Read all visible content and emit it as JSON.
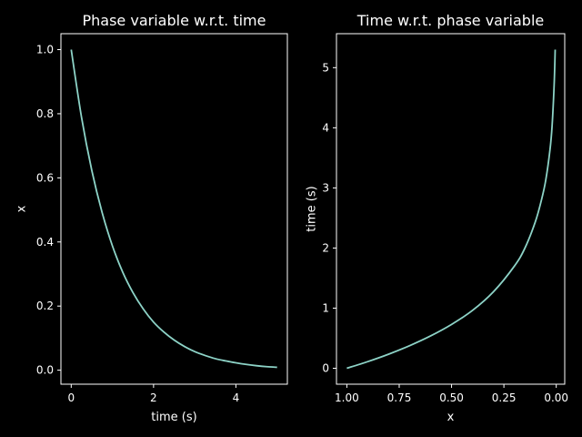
{
  "figure": {
    "background": "#000000",
    "foreground": "#ffffff",
    "line_color": "#8dd3c7"
  },
  "chart_data": [
    {
      "type": "line",
      "title": "Phase variable w.r.t. time",
      "xlabel": "time (s)",
      "ylabel": "x",
      "xlim": [
        -0.25,
        5.25
      ],
      "ylim": [
        -0.0437,
        1.0497
      ],
      "xticks": [
        0,
        2,
        4
      ],
      "xtick_labels": [
        "0",
        "2",
        "4"
      ],
      "yticks": [
        0.0,
        0.2,
        0.4,
        0.6,
        0.8,
        1.0
      ],
      "ytick_labels": [
        "0.0",
        "0.2",
        "0.4",
        "0.6",
        "0.8",
        "1.0"
      ],
      "grid": false,
      "x": [
        0.0,
        0.25,
        0.5,
        0.75,
        1.0,
        1.25,
        1.5,
        1.75,
        2.0,
        2.25,
        2.5,
        2.75,
        3.0,
        3.25,
        3.5,
        3.75,
        4.0,
        4.25,
        4.5,
        4.75,
        5.0
      ],
      "y": [
        1.0,
        0.789,
        0.623,
        0.492,
        0.388,
        0.306,
        0.242,
        0.191,
        0.15,
        0.119,
        0.094,
        0.074,
        0.058,
        0.046,
        0.036,
        0.029,
        0.023,
        0.018,
        0.014,
        0.011,
        0.009
      ]
    },
    {
      "type": "line",
      "title": "Time w.r.t. phase variable",
      "xlabel": "x",
      "ylabel": "time (s)",
      "x_inverted": true,
      "xlim": [
        1.0496,
        -0.0405
      ],
      "ylim": [
        -0.265,
        5.565
      ],
      "xticks": [
        1.0,
        0.75,
        0.5,
        0.25,
        0.0
      ],
      "xtick_labels": [
        "1.00",
        "0.75",
        "0.50",
        "0.25",
        "0.00"
      ],
      "yticks": [
        0,
        1,
        2,
        3,
        4,
        5
      ],
      "ytick_labels": [
        "0",
        "1",
        "2",
        "3",
        "4",
        "5"
      ],
      "grid": false,
      "x": [
        1.0,
        0.9,
        0.8,
        0.7,
        0.6,
        0.5,
        0.4,
        0.3,
        0.2,
        0.15,
        0.1,
        0.07,
        0.05,
        0.03,
        0.02,
        0.01,
        0.005
      ],
      "y": [
        0.0,
        0.111,
        0.235,
        0.376,
        0.538,
        0.729,
        0.962,
        1.272,
        1.699,
        1.996,
        2.435,
        2.808,
        3.131,
        3.63,
        4.022,
        4.715,
        5.3
      ]
    }
  ]
}
